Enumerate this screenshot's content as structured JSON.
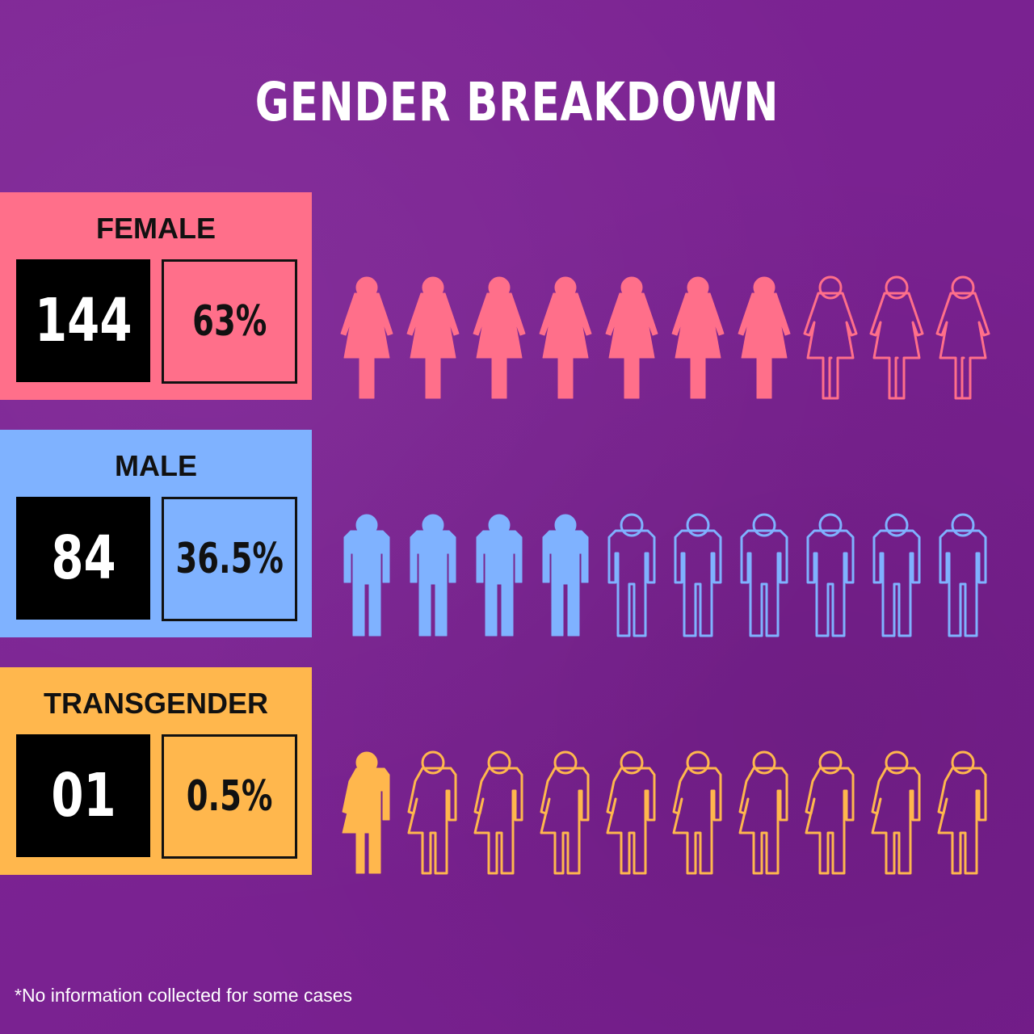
{
  "title": "GENDER BREAKDOWN",
  "footnote": "*No information collected for some cases",
  "colors": {
    "background": "#7b1f93",
    "female": "#ff6f8a",
    "male": "#7fb2ff",
    "transgender": "#ffb74d"
  },
  "chart_data": {
    "type": "pictogram",
    "title": "GENDER BREAKDOWN",
    "icons_per_row": 10,
    "series": [
      {
        "name": "FEMALE",
        "count": "144",
        "percent": "63%",
        "value": 63,
        "filled_icons": 7,
        "icon": "female-figure-icon",
        "color": "#ff6f8a"
      },
      {
        "name": "MALE",
        "count": "84",
        "percent": "36.5%",
        "value": 36.5,
        "filled_icons": 4,
        "icon": "male-figure-icon",
        "color": "#7fb2ff"
      },
      {
        "name": "TRANSGENDER",
        "count": "01",
        "percent": "0.5%",
        "value": 0.5,
        "filled_icons": 1,
        "icon": "transgender-figure-icon",
        "color": "#ffb74d"
      }
    ]
  }
}
